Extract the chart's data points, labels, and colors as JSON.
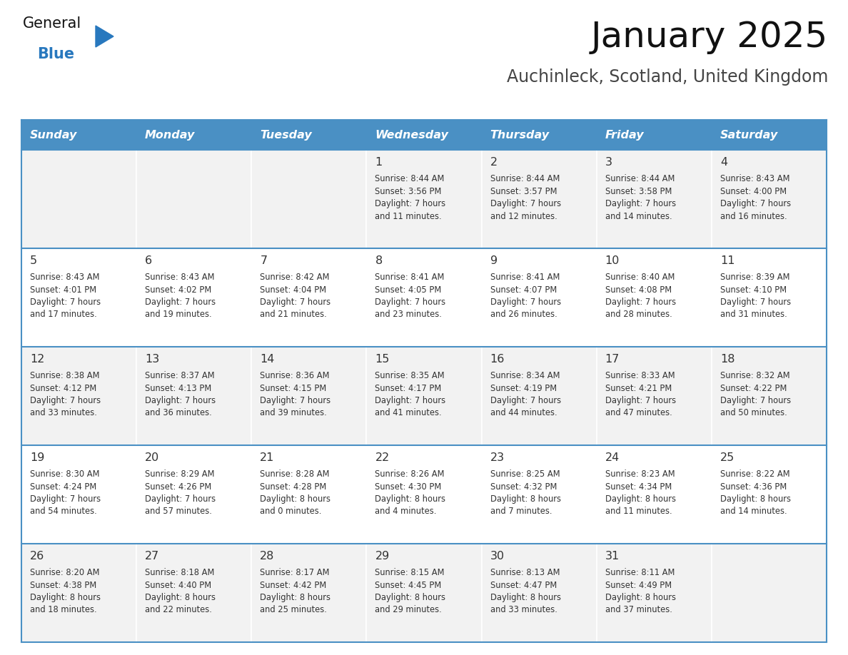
{
  "title": "January 2025",
  "subtitle": "Auchinleck, Scotland, United Kingdom",
  "days_of_week": [
    "Sunday",
    "Monday",
    "Tuesday",
    "Wednesday",
    "Thursday",
    "Friday",
    "Saturday"
  ],
  "header_bg": "#4a90c4",
  "header_text": "#FFFFFF",
  "cell_bg_odd": "#F2F2F2",
  "cell_bg_even": "#FFFFFF",
  "border_color": "#4a90c4",
  "text_color": "#333333",
  "title_color": "#111111",
  "subtitle_color": "#444444",
  "calendar": [
    [
      {
        "day": "",
        "info": ""
      },
      {
        "day": "",
        "info": ""
      },
      {
        "day": "",
        "info": ""
      },
      {
        "day": "1",
        "info": "Sunrise: 8:44 AM\nSunset: 3:56 PM\nDaylight: 7 hours\nand 11 minutes."
      },
      {
        "day": "2",
        "info": "Sunrise: 8:44 AM\nSunset: 3:57 PM\nDaylight: 7 hours\nand 12 minutes."
      },
      {
        "day": "3",
        "info": "Sunrise: 8:44 AM\nSunset: 3:58 PM\nDaylight: 7 hours\nand 14 minutes."
      },
      {
        "day": "4",
        "info": "Sunrise: 8:43 AM\nSunset: 4:00 PM\nDaylight: 7 hours\nand 16 minutes."
      }
    ],
    [
      {
        "day": "5",
        "info": "Sunrise: 8:43 AM\nSunset: 4:01 PM\nDaylight: 7 hours\nand 17 minutes."
      },
      {
        "day": "6",
        "info": "Sunrise: 8:43 AM\nSunset: 4:02 PM\nDaylight: 7 hours\nand 19 minutes."
      },
      {
        "day": "7",
        "info": "Sunrise: 8:42 AM\nSunset: 4:04 PM\nDaylight: 7 hours\nand 21 minutes."
      },
      {
        "day": "8",
        "info": "Sunrise: 8:41 AM\nSunset: 4:05 PM\nDaylight: 7 hours\nand 23 minutes."
      },
      {
        "day": "9",
        "info": "Sunrise: 8:41 AM\nSunset: 4:07 PM\nDaylight: 7 hours\nand 26 minutes."
      },
      {
        "day": "10",
        "info": "Sunrise: 8:40 AM\nSunset: 4:08 PM\nDaylight: 7 hours\nand 28 minutes."
      },
      {
        "day": "11",
        "info": "Sunrise: 8:39 AM\nSunset: 4:10 PM\nDaylight: 7 hours\nand 31 minutes."
      }
    ],
    [
      {
        "day": "12",
        "info": "Sunrise: 8:38 AM\nSunset: 4:12 PM\nDaylight: 7 hours\nand 33 minutes."
      },
      {
        "day": "13",
        "info": "Sunrise: 8:37 AM\nSunset: 4:13 PM\nDaylight: 7 hours\nand 36 minutes."
      },
      {
        "day": "14",
        "info": "Sunrise: 8:36 AM\nSunset: 4:15 PM\nDaylight: 7 hours\nand 39 minutes."
      },
      {
        "day": "15",
        "info": "Sunrise: 8:35 AM\nSunset: 4:17 PM\nDaylight: 7 hours\nand 41 minutes."
      },
      {
        "day": "16",
        "info": "Sunrise: 8:34 AM\nSunset: 4:19 PM\nDaylight: 7 hours\nand 44 minutes."
      },
      {
        "day": "17",
        "info": "Sunrise: 8:33 AM\nSunset: 4:21 PM\nDaylight: 7 hours\nand 47 minutes."
      },
      {
        "day": "18",
        "info": "Sunrise: 8:32 AM\nSunset: 4:22 PM\nDaylight: 7 hours\nand 50 minutes."
      }
    ],
    [
      {
        "day": "19",
        "info": "Sunrise: 8:30 AM\nSunset: 4:24 PM\nDaylight: 7 hours\nand 54 minutes."
      },
      {
        "day": "20",
        "info": "Sunrise: 8:29 AM\nSunset: 4:26 PM\nDaylight: 7 hours\nand 57 minutes."
      },
      {
        "day": "21",
        "info": "Sunrise: 8:28 AM\nSunset: 4:28 PM\nDaylight: 8 hours\nand 0 minutes."
      },
      {
        "day": "22",
        "info": "Sunrise: 8:26 AM\nSunset: 4:30 PM\nDaylight: 8 hours\nand 4 minutes."
      },
      {
        "day": "23",
        "info": "Sunrise: 8:25 AM\nSunset: 4:32 PM\nDaylight: 8 hours\nand 7 minutes."
      },
      {
        "day": "24",
        "info": "Sunrise: 8:23 AM\nSunset: 4:34 PM\nDaylight: 8 hours\nand 11 minutes."
      },
      {
        "day": "25",
        "info": "Sunrise: 8:22 AM\nSunset: 4:36 PM\nDaylight: 8 hours\nand 14 minutes."
      }
    ],
    [
      {
        "day": "26",
        "info": "Sunrise: 8:20 AM\nSunset: 4:38 PM\nDaylight: 8 hours\nand 18 minutes."
      },
      {
        "day": "27",
        "info": "Sunrise: 8:18 AM\nSunset: 4:40 PM\nDaylight: 8 hours\nand 22 minutes."
      },
      {
        "day": "28",
        "info": "Sunrise: 8:17 AM\nSunset: 4:42 PM\nDaylight: 8 hours\nand 25 minutes."
      },
      {
        "day": "29",
        "info": "Sunrise: 8:15 AM\nSunset: 4:45 PM\nDaylight: 8 hours\nand 29 minutes."
      },
      {
        "day": "30",
        "info": "Sunrise: 8:13 AM\nSunset: 4:47 PM\nDaylight: 8 hours\nand 33 minutes."
      },
      {
        "day": "31",
        "info": "Sunrise: 8:11 AM\nSunset: 4:49 PM\nDaylight: 8 hours\nand 37 minutes."
      },
      {
        "day": "",
        "info": ""
      }
    ]
  ],
  "logo_color_general": "#111111",
  "logo_color_blue": "#2878be",
  "logo_triangle_color": "#2878be"
}
